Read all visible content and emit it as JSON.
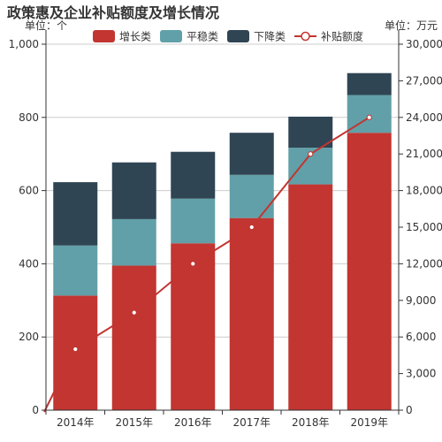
{
  "chart_data": {
    "type": "bar",
    "title": "政策惠及企业补贴额度及增长情况",
    "left_unit": "单位：个",
    "right_unit": "单位：万元",
    "categories": [
      "2014年",
      "2015年",
      "2016年",
      "2017年",
      "2018年",
      "2019年"
    ],
    "series": [
      {
        "name": "增长类",
        "type": "bar",
        "stack": "total",
        "axis": "left",
        "color": "#C23531",
        "values": [
          313,
          395,
          456,
          525,
          617,
          758
        ]
      },
      {
        "name": "平稳类",
        "type": "bar",
        "stack": "total",
        "axis": "left",
        "color": "#61A0A8",
        "values": [
          137,
          127,
          122,
          118,
          100,
          103
        ]
      },
      {
        "name": "下降类",
        "type": "bar",
        "stack": "total",
        "axis": "left",
        "color": "#2F4554",
        "values": [
          173,
          155,
          128,
          115,
          85,
          60
        ]
      },
      {
        "name": "补贴额度",
        "type": "line",
        "axis": "right",
        "color": "#C23531",
        "values": [
          5000,
          8000,
          12000,
          15000,
          21000,
          24000
        ]
      }
    ],
    "y_left": {
      "min": 0,
      "max": 1000,
      "ticks": [
        0,
        200,
        400,
        600,
        800,
        1000
      ],
      "tick_labels": [
        "0",
        "200",
        "400",
        "600",
        "800",
        "1,000"
      ]
    },
    "y_right": {
      "min": 0,
      "max": 30000,
      "ticks": [
        0,
        3000,
        6000,
        9000,
        12000,
        15000,
        18000,
        21000,
        24000,
        27000,
        30000
      ],
      "tick_labels": [
        "0",
        "3,000",
        "6,000",
        "9,000",
        "12,000",
        "15,000",
        "18,000",
        "21,000",
        "24,000",
        "27,000",
        "30,000"
      ]
    },
    "grid": true,
    "legend_position": "top-center"
  }
}
